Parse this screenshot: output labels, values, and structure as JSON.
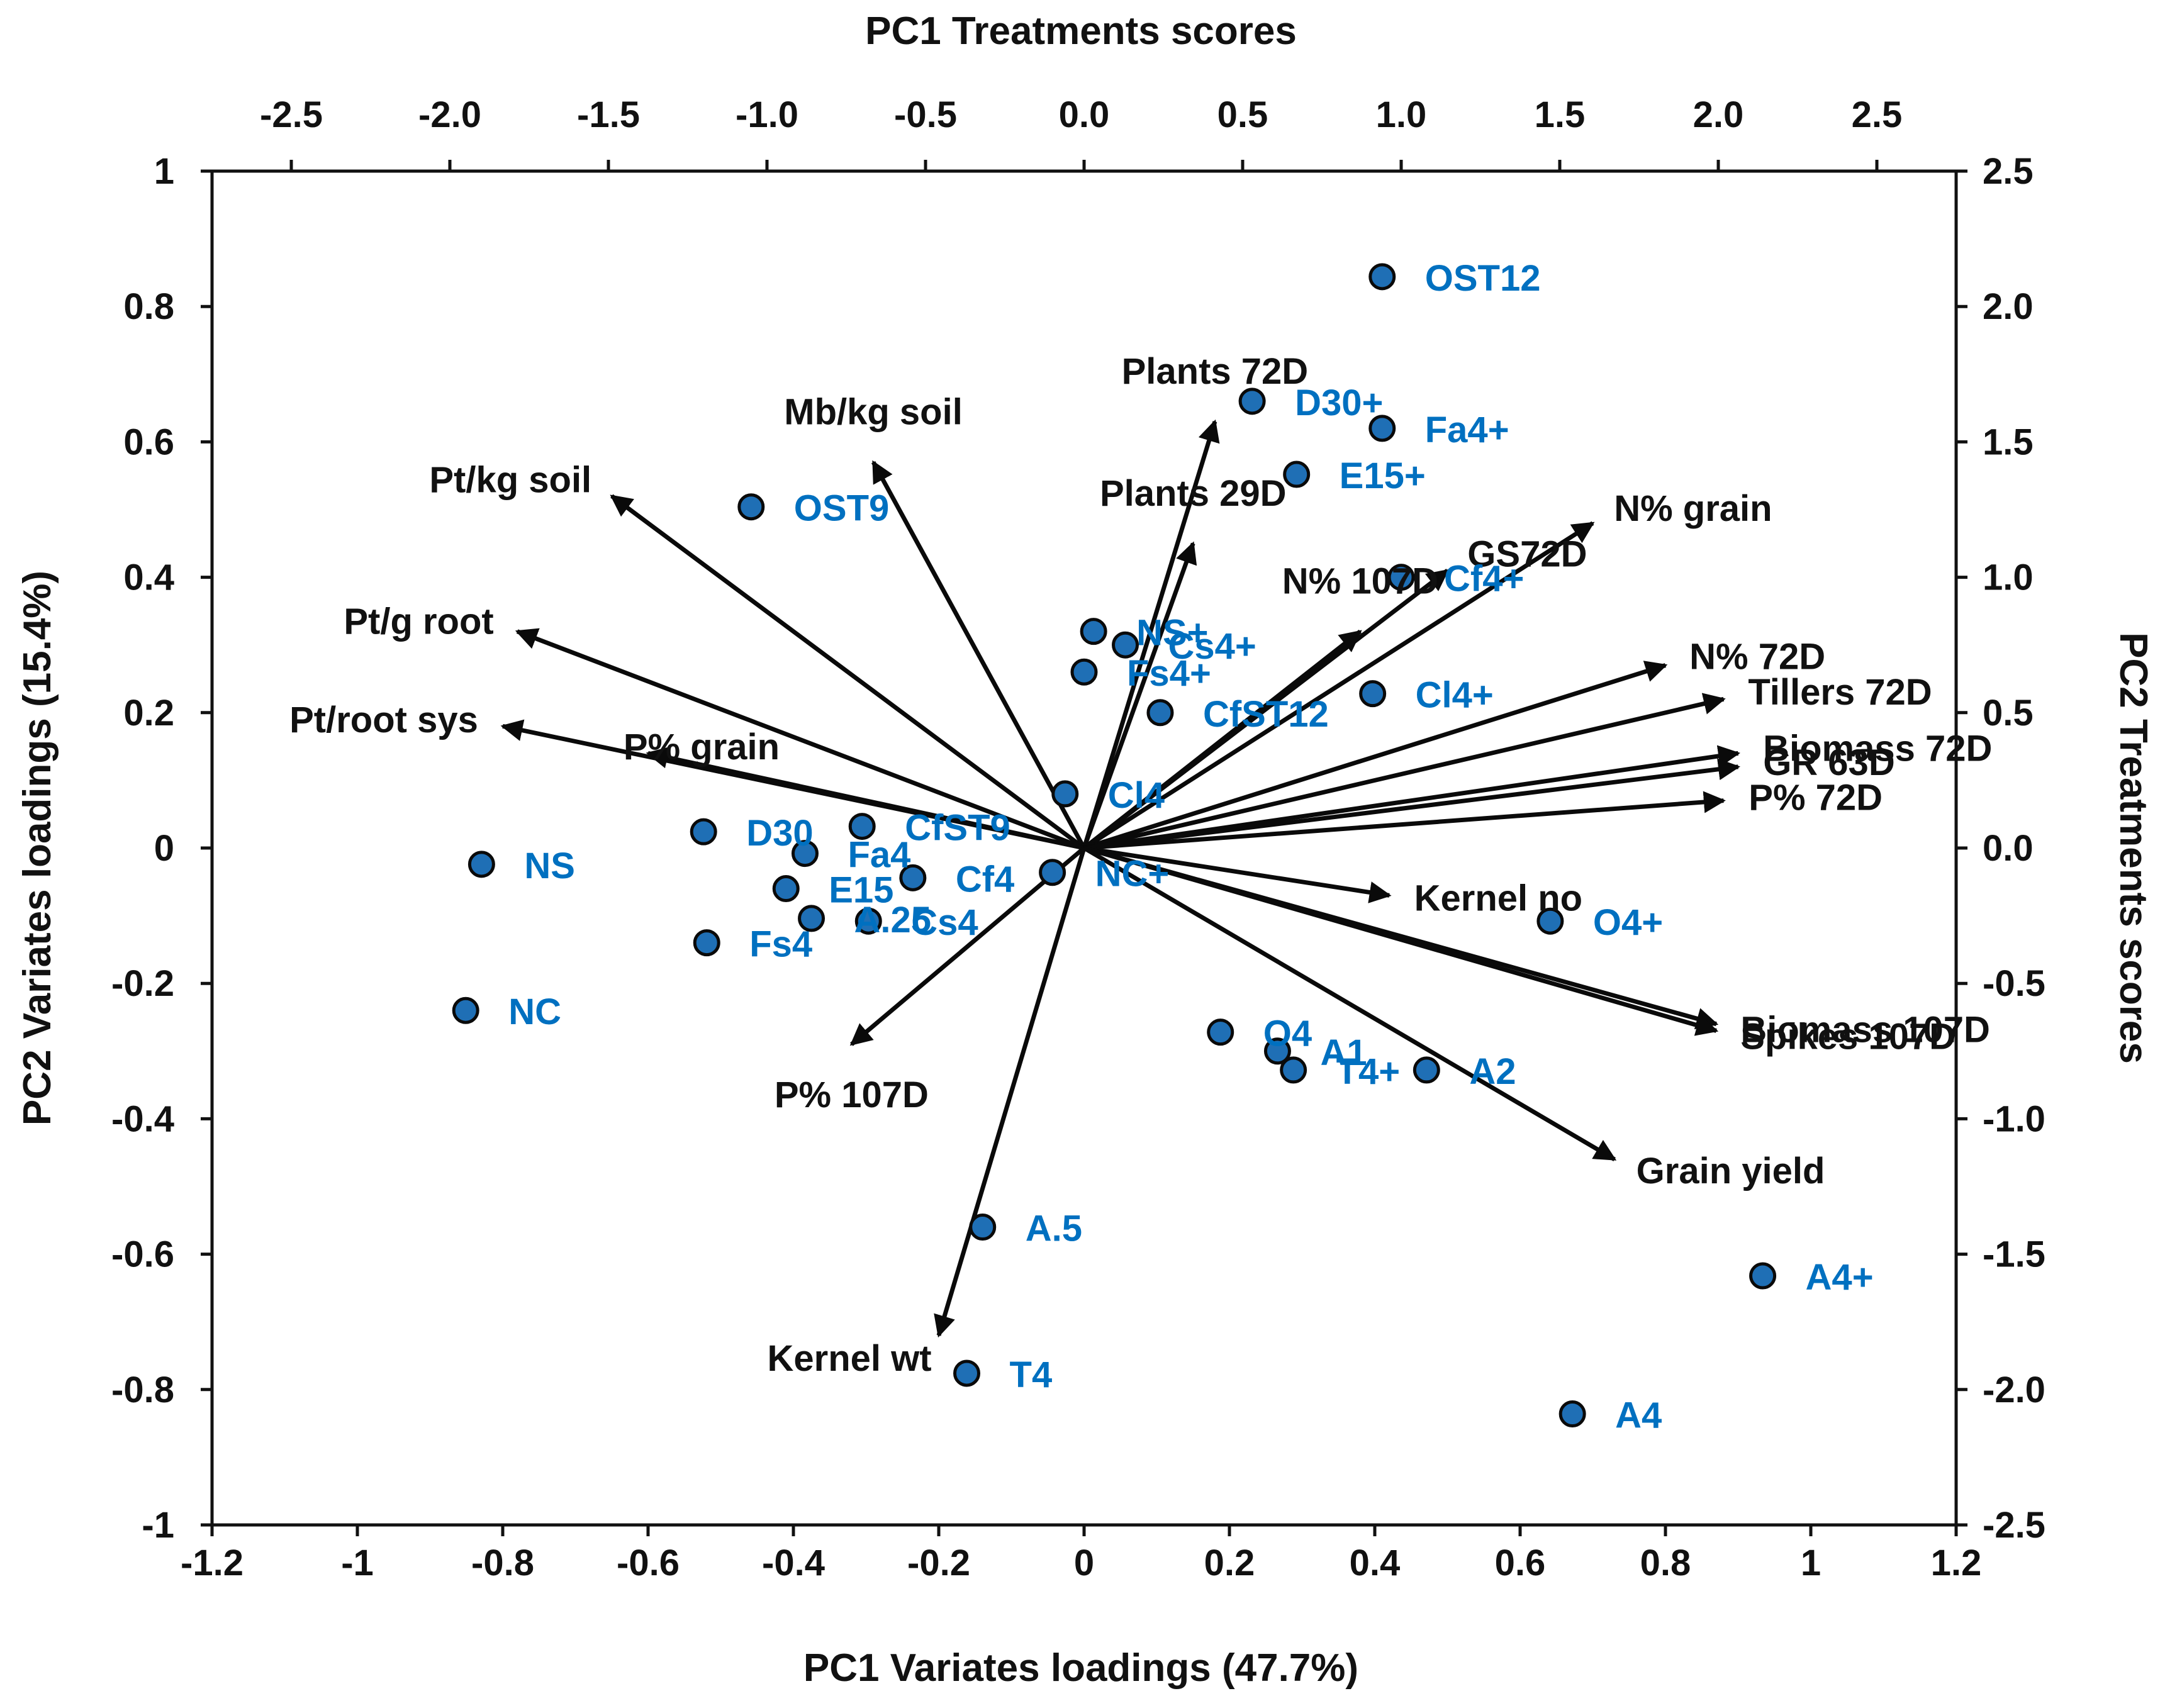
{
  "chart_data": {
    "type": "scatter",
    "subtype": "biplot",
    "axes": {
      "bottom": {
        "title": "PC1 Variates loadings (47.7%)",
        "range": [
          -1.2,
          1.2
        ],
        "tick_values": [
          -1.2,
          -1,
          -0.8,
          -0.6,
          -0.4,
          -0.2,
          0,
          0.2,
          0.4,
          0.6,
          0.8,
          1,
          1.2
        ],
        "tick_labels": [
          "-1.2",
          "-1",
          "-0.8",
          "-0.6",
          "-0.4",
          "-0.2",
          "0",
          "0.2",
          "0.4",
          "0.6",
          "0.8",
          "1",
          "1.2"
        ]
      },
      "left": {
        "title": "PC2 Variates loadings (15.4%)",
        "range": [
          -1,
          1
        ],
        "tick_values": [
          -1,
          -0.8,
          -0.6,
          -0.4,
          -0.2,
          0,
          0.2,
          0.4,
          0.6,
          0.8,
          1
        ],
        "tick_labels": [
          "-1",
          "-0.8",
          "-0.6",
          "-0.4",
          "-0.2",
          "0",
          "0.2",
          "0.4",
          "0.6",
          "0.8",
          "1"
        ]
      },
      "top": {
        "title": "PC1 Treatments scores",
        "range": [
          -2.75,
          2.75
        ],
        "tick_values": [
          -2.5,
          -2.0,
          -1.5,
          -1.0,
          -0.5,
          0.0,
          0.5,
          1.0,
          1.5,
          2.0,
          2.5
        ],
        "tick_labels": [
          "-2.5",
          "-2.0",
          "-1.5",
          "-1.0",
          "-0.5",
          "0.0",
          "0.5",
          "1.0",
          "1.5",
          "2.0",
          "2.5"
        ]
      },
      "right": {
        "title": "PC2 Treatments scores",
        "range": [
          -2.5,
          2.5
        ],
        "tick_values": [
          -2.5,
          -2.0,
          -1.5,
          -1.0,
          -0.5,
          0.0,
          0.5,
          1.0,
          1.5,
          2.0,
          2.5
        ],
        "tick_labels": [
          "-2.5",
          "-2.0",
          "-1.5",
          "-1.0",
          "-0.5",
          "0.0",
          "0.5",
          "1.0",
          "1.5",
          "2.0",
          "2.5"
        ]
      }
    },
    "variate_loadings": [
      {
        "name": "Pt/kg soil",
        "x": -0.65,
        "y": 0.52,
        "label_anchor": "end"
      },
      {
        "name": "Mb/kg soil",
        "x": -0.29,
        "y": 0.57,
        "label_anchor": "middle"
      },
      {
        "name": "Pt/g root",
        "x": -0.78,
        "y": 0.32,
        "label_anchor": "end"
      },
      {
        "name": "Pt/root sys",
        "x": -0.8,
        "y": 0.18,
        "label_anchor": "end"
      },
      {
        "name": "P% grain",
        "x": -0.6,
        "y": 0.14,
        "label_anchor": "start"
      },
      {
        "name": "Plants 72D",
        "x": 0.18,
        "y": 0.63,
        "label_anchor": "middle"
      },
      {
        "name": "Plants 29D",
        "x": 0.15,
        "y": 0.45,
        "label_anchor": "middle"
      },
      {
        "name": "N% 107D",
        "x": 0.38,
        "y": 0.32,
        "label_anchor": "middle"
      },
      {
        "name": "N% grain",
        "x": 0.7,
        "y": 0.48,
        "label_anchor": "start"
      },
      {
        "name": "GS72D",
        "x": 0.5,
        "y": 0.41,
        "label_anchor": "start"
      },
      {
        "name": "N% 72D",
        "x": 0.8,
        "y": 0.27,
        "label_anchor": "start"
      },
      {
        "name": "Tillers 72D",
        "x": 0.88,
        "y": 0.22,
        "label_anchor": "start"
      },
      {
        "name": "Biomass 72D",
        "x": 0.9,
        "y": 0.14,
        "label_anchor": "start"
      },
      {
        "name": "GR 63D",
        "x": 0.9,
        "y": 0.12,
        "label_anchor": "start"
      },
      {
        "name": "P% 72D",
        "x": 0.88,
        "y": 0.07,
        "label_anchor": "start"
      },
      {
        "name": "Kernel no",
        "x": 0.42,
        "y": -0.07,
        "label_anchor": "start"
      },
      {
        "name": "Biomass 107D",
        "x": 0.87,
        "y": -0.26,
        "label_anchor": "start"
      },
      {
        "name": "Spikes 107D",
        "x": 0.87,
        "y": -0.27,
        "label_anchor": "start"
      },
      {
        "name": "Grain yield",
        "x": 0.73,
        "y": -0.46,
        "label_anchor": "start"
      },
      {
        "name": "P% 107D",
        "x": -0.32,
        "y": -0.29,
        "label_anchor": "middle"
      },
      {
        "name": "Kernel wt",
        "x": -0.2,
        "y": -0.72,
        "label_anchor": "end"
      }
    ],
    "treatment_scores": [
      {
        "name": "OST12",
        "x": 0.94,
        "y": 2.11
      },
      {
        "name": "D30+",
        "x": 0.53,
        "y": 1.65
      },
      {
        "name": "Fa4+",
        "x": 0.94,
        "y": 1.55
      },
      {
        "name": "E15+",
        "x": 0.67,
        "y": 1.38
      },
      {
        "name": "OST9",
        "x": -1.05,
        "y": 1.26
      },
      {
        "name": "Cf4+",
        "x": 1.0,
        "y": 1.0
      },
      {
        "name": "NS+",
        "x": 0.03,
        "y": 0.8
      },
      {
        "name": "Cs4+",
        "x": 0.13,
        "y": 0.75
      },
      {
        "name": "Fs4+",
        "x": 0.0,
        "y": 0.65
      },
      {
        "name": "Cl4+",
        "x": 0.91,
        "y": 0.57
      },
      {
        "name": "CfST12",
        "x": 0.24,
        "y": 0.5
      },
      {
        "name": "Cl4",
        "x": -0.06,
        "y": 0.2
      },
      {
        "name": "D30",
        "x": -1.2,
        "y": 0.06
      },
      {
        "name": "CfST9",
        "x": -0.7,
        "y": 0.08
      },
      {
        "name": "Fa4",
        "x": -0.88,
        "y": -0.02
      },
      {
        "name": "E15",
        "x": -0.94,
        "y": -0.15
      },
      {
        "name": "A.25",
        "x": -0.86,
        "y": -0.26
      },
      {
        "name": "Cs4",
        "x": -0.68,
        "y": -0.27
      },
      {
        "name": "Cf4",
        "x": -0.54,
        "y": -0.11
      },
      {
        "name": "NC+",
        "x": -0.1,
        "y": -0.09
      },
      {
        "name": "NS",
        "x": -1.9,
        "y": -0.06
      },
      {
        "name": "Fs4",
        "x": -1.19,
        "y": -0.35
      },
      {
        "name": "NC",
        "x": -1.95,
        "y": -0.6
      },
      {
        "name": "O4+",
        "x": 1.47,
        "y": -0.27
      },
      {
        "name": "O4",
        "x": 0.43,
        "y": -0.68
      },
      {
        "name": "A1",
        "x": 0.61,
        "y": -0.75
      },
      {
        "name": "T4+",
        "x": 0.66,
        "y": -0.82
      },
      {
        "name": "A2",
        "x": 1.08,
        "y": -0.82
      },
      {
        "name": "A.5",
        "x": -0.32,
        "y": -1.4
      },
      {
        "name": "T4",
        "x": -0.37,
        "y": -1.94
      },
      {
        "name": "A4+",
        "x": 2.14,
        "y": -1.58
      },
      {
        "name": "A4",
        "x": 1.54,
        "y": -2.09
      }
    ]
  },
  "colors": {
    "treatment": "#0070C0",
    "marker_fill": "#1F6FB5",
    "marker_stroke": "#0A0A0A",
    "arrow": "#0A0A0A",
    "text": "#111111"
  }
}
